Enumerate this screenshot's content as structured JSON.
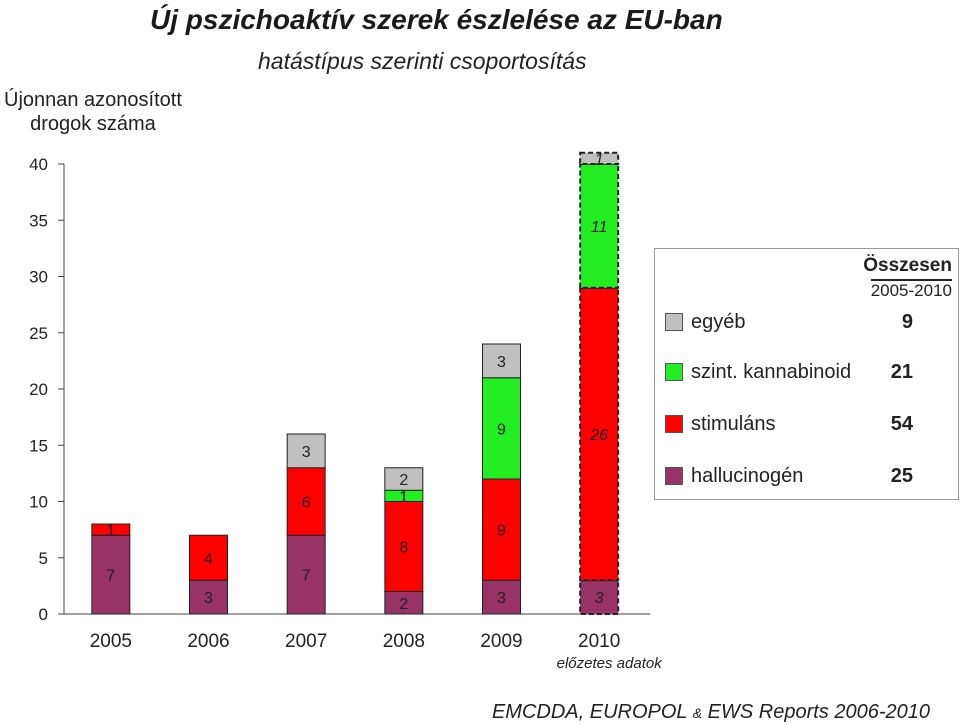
{
  "header": {
    "title": "Új  pszichoaktív szerek észlelése az EU-ban",
    "subtitle": "hatástípus szerinti csoportosítás",
    "ylabel_line1": "Újonnan azonosított",
    "ylabel_line2": "drogok száma"
  },
  "footer": {
    "source_part1": "EMCDDA, EUROPOL ",
    "source_amp": "&",
    "source_part2": " EWS Reports 2006-2010"
  },
  "legend": {
    "head1": "Összesen",
    "head2": "2005-2010",
    "items": [
      {
        "label": "egyéb",
        "total": "9",
        "color": "#c0c0c0"
      },
      {
        "label": "szint. kannabinoid",
        "total": "21",
        "color": "#22ee22"
      },
      {
        "label": "stimuláns",
        "total": "54",
        "color": "#ff0000"
      },
      {
        "label": "hallucinogén",
        "total": "25",
        "color": "#993366"
      }
    ]
  },
  "chart_data": {
    "type": "bar",
    "stacked": true,
    "categories": [
      "2005",
      "2006",
      "2007",
      "2008",
      "2009",
      "2010"
    ],
    "x_note": "előzetes adatok",
    "ylim": [
      0,
      40
    ],
    "yticks": [
      "0",
      "5",
      "10",
      "15",
      "20",
      "25",
      "30",
      "35",
      "40"
    ],
    "series": [
      {
        "name": "hallucinogén",
        "color": "#993366",
        "values": [
          7,
          3,
          7,
          2,
          3,
          3
        ],
        "labels": [
          "7",
          "3",
          "7",
          "2",
          "3",
          "3"
        ]
      },
      {
        "name": "stimuláns",
        "color": "#ff0000",
        "values": [
          1,
          4,
          6,
          8,
          9,
          26
        ],
        "labels": [
          "1",
          "4",
          "6",
          "8",
          "9",
          "26"
        ]
      },
      {
        "name": "szint. kannabinoid",
        "color": "#22ee22",
        "values": [
          0,
          0,
          0,
          1,
          9,
          11
        ],
        "labels": [
          "",
          "",
          "",
          "1",
          "9",
          "11"
        ]
      },
      {
        "name": "egyéb",
        "color": "#c0c0c0",
        "values": [
          0,
          0,
          3,
          2,
          3,
          1
        ],
        "labels": [
          "",
          "",
          "3",
          "2",
          "3",
          "1"
        ]
      }
    ],
    "preliminary_category": "2010"
  }
}
